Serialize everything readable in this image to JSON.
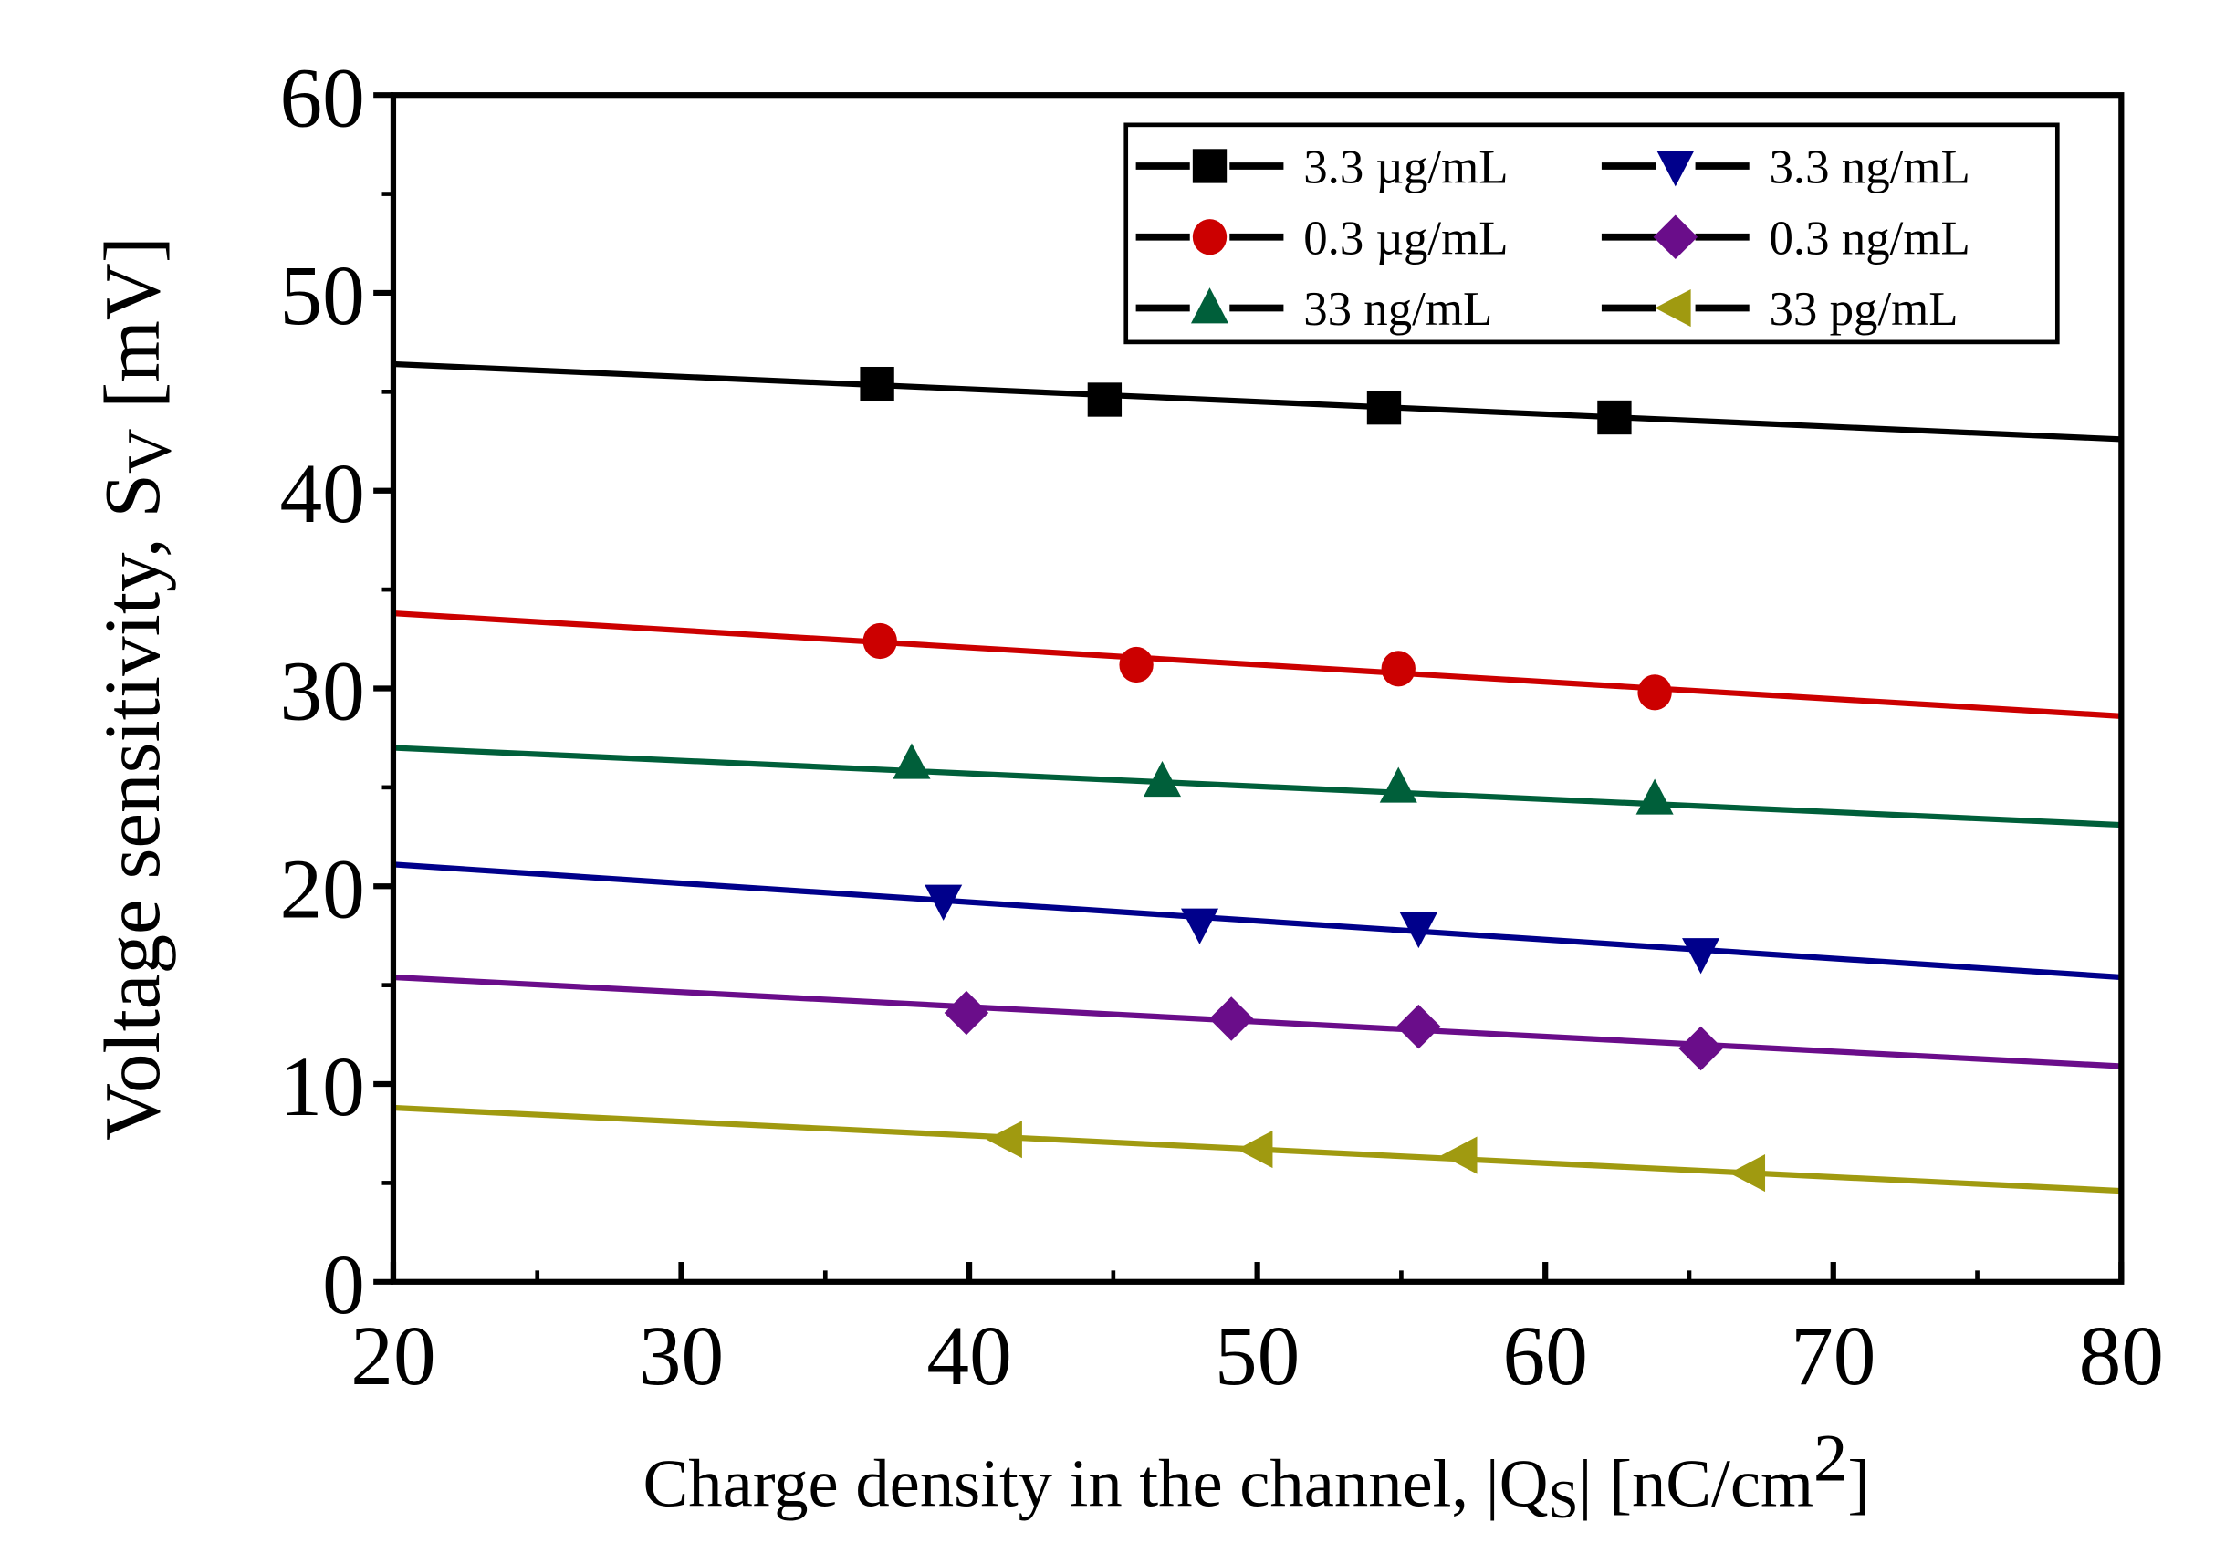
{
  "chart_data": {
    "type": "line",
    "title": "",
    "xlabel": "Charge density in the channel, |Q",
    "xlabel_sub": "S",
    "xlabel_unit": "| [nC/cm",
    "xlabel_sup": "2",
    "xlabel_end": "]",
    "ylabel": "Voltage sensitivity, S",
    "ylabel_sub": "V",
    "ylabel_unit": " [mV]",
    "xlim": [
      20,
      80
    ],
    "ylim": [
      0,
      60
    ],
    "xticks": [
      "20",
      "30",
      "40",
      "50",
      "60",
      "70",
      "80"
    ],
    "yticks": [
      "0",
      "10",
      "20",
      "30",
      "40",
      "50",
      "60"
    ],
    "grid": false,
    "legend_placement": "top-right",
    "series": [
      {
        "name": "3.3 µg/mL",
        "color": "#000000",
        "marker": "square",
        "fit": [
          46.4,
          42.6
        ],
        "x": [
          36.8,
          44.7,
          54.4,
          62.4
        ],
        "y": [
          45.4,
          44.6,
          44.2,
          43.7
        ]
      },
      {
        "name": "3.3 ng/mL",
        "color": "#00008b",
        "marker": "triangle-down",
        "fit": [
          21.1,
          15.4
        ],
        "x": [
          39.1,
          48.0,
          55.6,
          65.4
        ],
        "y": [
          19.3,
          18.1,
          17.9,
          16.6
        ]
      },
      {
        "name": "0.3 µg/mL",
        "color": "#cc0000",
        "marker": "circle",
        "fit": [
          33.8,
          28.6
        ],
        "x": [
          36.9,
          45.8,
          54.9,
          63.8
        ],
        "y": [
          32.4,
          31.2,
          31.0,
          29.8
        ]
      },
      {
        "name": "0.3 ng/mL",
        "color": "#6a0d8a",
        "marker": "diamond",
        "fit": [
          15.4,
          10.9
        ],
        "x": [
          39.9,
          49.1,
          55.6,
          65.4
        ],
        "y": [
          13.6,
          13.3,
          12.9,
          11.8
        ]
      },
      {
        "name": "33 ng/mL",
        "color": "#005f3a",
        "marker": "triangle-up",
        "fit": [
          27.0,
          23.1
        ],
        "x": [
          38.0,
          46.7,
          54.9,
          63.8
        ],
        "y": [
          26.2,
          25.3,
          25.0,
          24.4
        ]
      },
      {
        "name": "33 pg/mL",
        "color": "#a09a10",
        "marker": "triangle-left",
        "fit": [
          8.8,
          4.6
        ],
        "x": [
          41.3,
          50.0,
          57.1,
          67.1
        ],
        "y": [
          7.2,
          6.7,
          6.4,
          5.5
        ]
      }
    ]
  }
}
